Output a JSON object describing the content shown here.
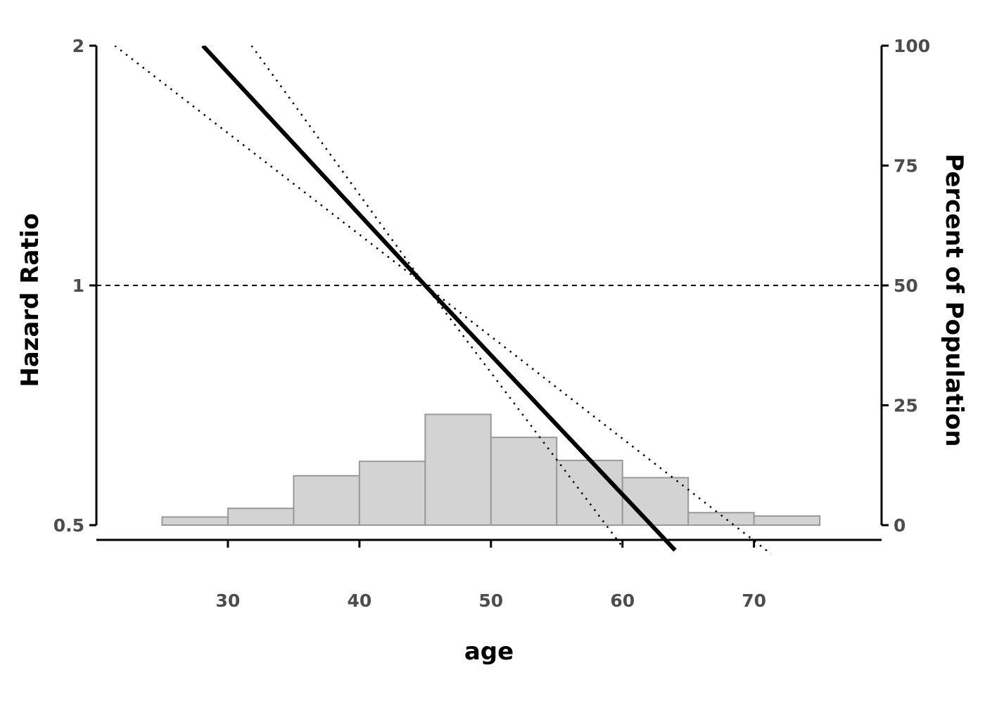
{
  "chart_data": {
    "type": "line",
    "xlabel": "age",
    "ylabel": "Hazard Ratio",
    "ylabel_right": "Percent of Population",
    "xlim": [
      20,
      79.7
    ],
    "ylim": [
      0.5,
      2
    ],
    "ylim_right": [
      0,
      100
    ],
    "y_scale": "log",
    "x_ticks": [
      "30",
      "40",
      "50",
      "60",
      "70"
    ],
    "y_ticks": [
      "0.5",
      "1",
      "2"
    ],
    "y_ticks_right": [
      "0",
      "25",
      "50",
      "75",
      "100"
    ],
    "reference_line": {
      "y": 1,
      "style": "dashed"
    },
    "series": [
      {
        "role": "estimate",
        "style": "solid",
        "color": "#000000",
        "x": [
          28.1,
          45.0,
          64.0
        ],
        "y": [
          2.0,
          1.0,
          0.465
        ]
      },
      {
        "role": "lower-ci",
        "style": "dotted",
        "color": "#000000",
        "x": [
          31.8,
          45.0,
          59.9
        ],
        "y": [
          2.0,
          1.0,
          0.472
        ]
      },
      {
        "role": "upper-ci",
        "style": "dotted",
        "color": "#000000",
        "x": [
          21.4,
          45.0,
          71.3
        ],
        "y": [
          2.0,
          1.0,
          0.46
        ]
      }
    ],
    "histogram": {
      "fill": "#d3d3d3",
      "edge": "#999999",
      "bins": [
        {
          "x0": 25,
          "x1": 30,
          "percent": 1.7
        },
        {
          "x0": 30,
          "x1": 35,
          "percent": 3.5
        },
        {
          "x0": 35,
          "x1": 40,
          "percent": 10.3
        },
        {
          "x0": 40,
          "x1": 45,
          "percent": 13.3
        },
        {
          "x0": 45,
          "x1": 50,
          "percent": 23.1
        },
        {
          "x0": 50,
          "x1": 55,
          "percent": 18.3
        },
        {
          "x0": 55,
          "x1": 60,
          "percent": 13.5
        },
        {
          "x0": 60,
          "x1": 65,
          "percent": 9.9
        },
        {
          "x0": 65,
          "x1": 70,
          "percent": 2.6
        },
        {
          "x0": 70,
          "x1": 75,
          "percent": 1.9
        }
      ]
    },
    "grid": false
  }
}
